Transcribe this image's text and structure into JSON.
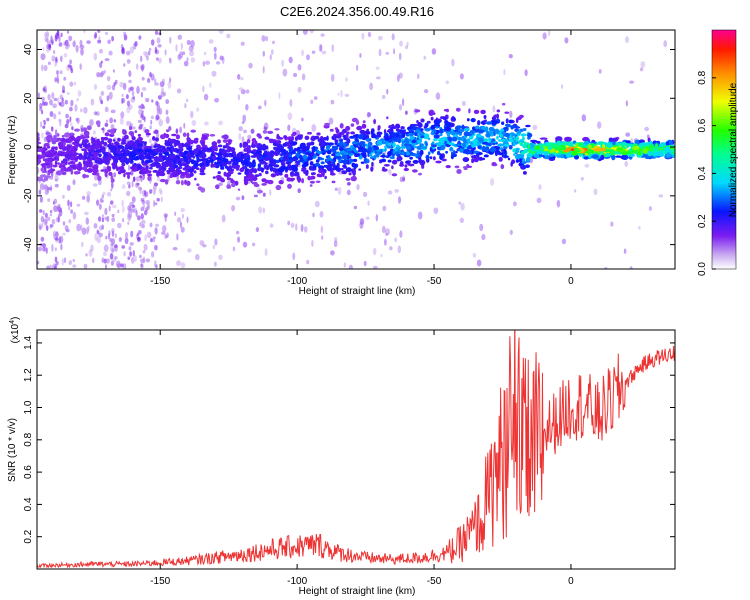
{
  "title": "C2E6.2024.356.00.49.R16",
  "chart_data": [
    {
      "type": "heatmap",
      "xlabel": "Height of straight line (km)",
      "ylabel": "Frequency (Hz)",
      "xlim": [
        -195,
        38
      ],
      "ylim": [
        -50,
        48
      ],
      "x_ticks": [
        -150,
        -100,
        -50,
        0
      ],
      "y_ticks": [
        -40,
        -20,
        0,
        20,
        40
      ],
      "colorbar": {
        "label": "Normalized spectral amplitude",
        "range": [
          0,
          1
        ],
        "ticks": [
          "0.0",
          "0.2",
          "0.4",
          "0.6",
          "0.8"
        ]
      },
      "ridge": {
        "x": [
          -195,
          -160,
          -120,
          -80,
          -50,
          -25,
          -15,
          0,
          38
        ],
        "frequency": [
          -3,
          -3,
          -6,
          -2,
          3,
          4,
          -1,
          -1,
          -1
        ],
        "peak_amplitude": [
          0.15,
          0.25,
          0.25,
          0.35,
          0.4,
          0.4,
          0.55,
          0.9,
          0.6
        ]
      }
    },
    {
      "type": "line",
      "xlabel": "Height of straight line (km)",
      "ylabel": "SNR (10 * v/v)",
      "y_multiplier": "(x10",
      "y_multiplier_exp": "4",
      "y_multiplier_close": ")",
      "xlim": [
        -195,
        38
      ],
      "ylim": [
        0,
        1.48
      ],
      "x_ticks": [
        -150,
        -100,
        -50,
        0
      ],
      "y_ticks": [
        "0.2",
        "0.4",
        "0.6",
        "0.8",
        "1.0",
        "1.2",
        "1.4"
      ],
      "series": [
        {
          "color": "#ee3333",
          "x": [
            -195,
            -175,
            -160,
            -140,
            -130,
            -120,
            -110,
            -100,
            -92,
            -85,
            -75,
            -65,
            -55,
            -45,
            -40,
            -35,
            -30,
            -25,
            -20,
            -15,
            -10,
            -5,
            0,
            5,
            10,
            15,
            20,
            25,
            30,
            38
          ],
          "y": [
            0.02,
            0.03,
            0.03,
            0.05,
            0.07,
            0.09,
            0.12,
            0.14,
            0.15,
            0.1,
            0.07,
            0.06,
            0.07,
            0.1,
            0.16,
            0.25,
            0.45,
            0.7,
            0.8,
            0.72,
            0.85,
            0.92,
            1.02,
            1.02,
            0.95,
            1.05,
            1.15,
            1.25,
            1.3,
            1.34
          ]
        }
      ]
    }
  ]
}
